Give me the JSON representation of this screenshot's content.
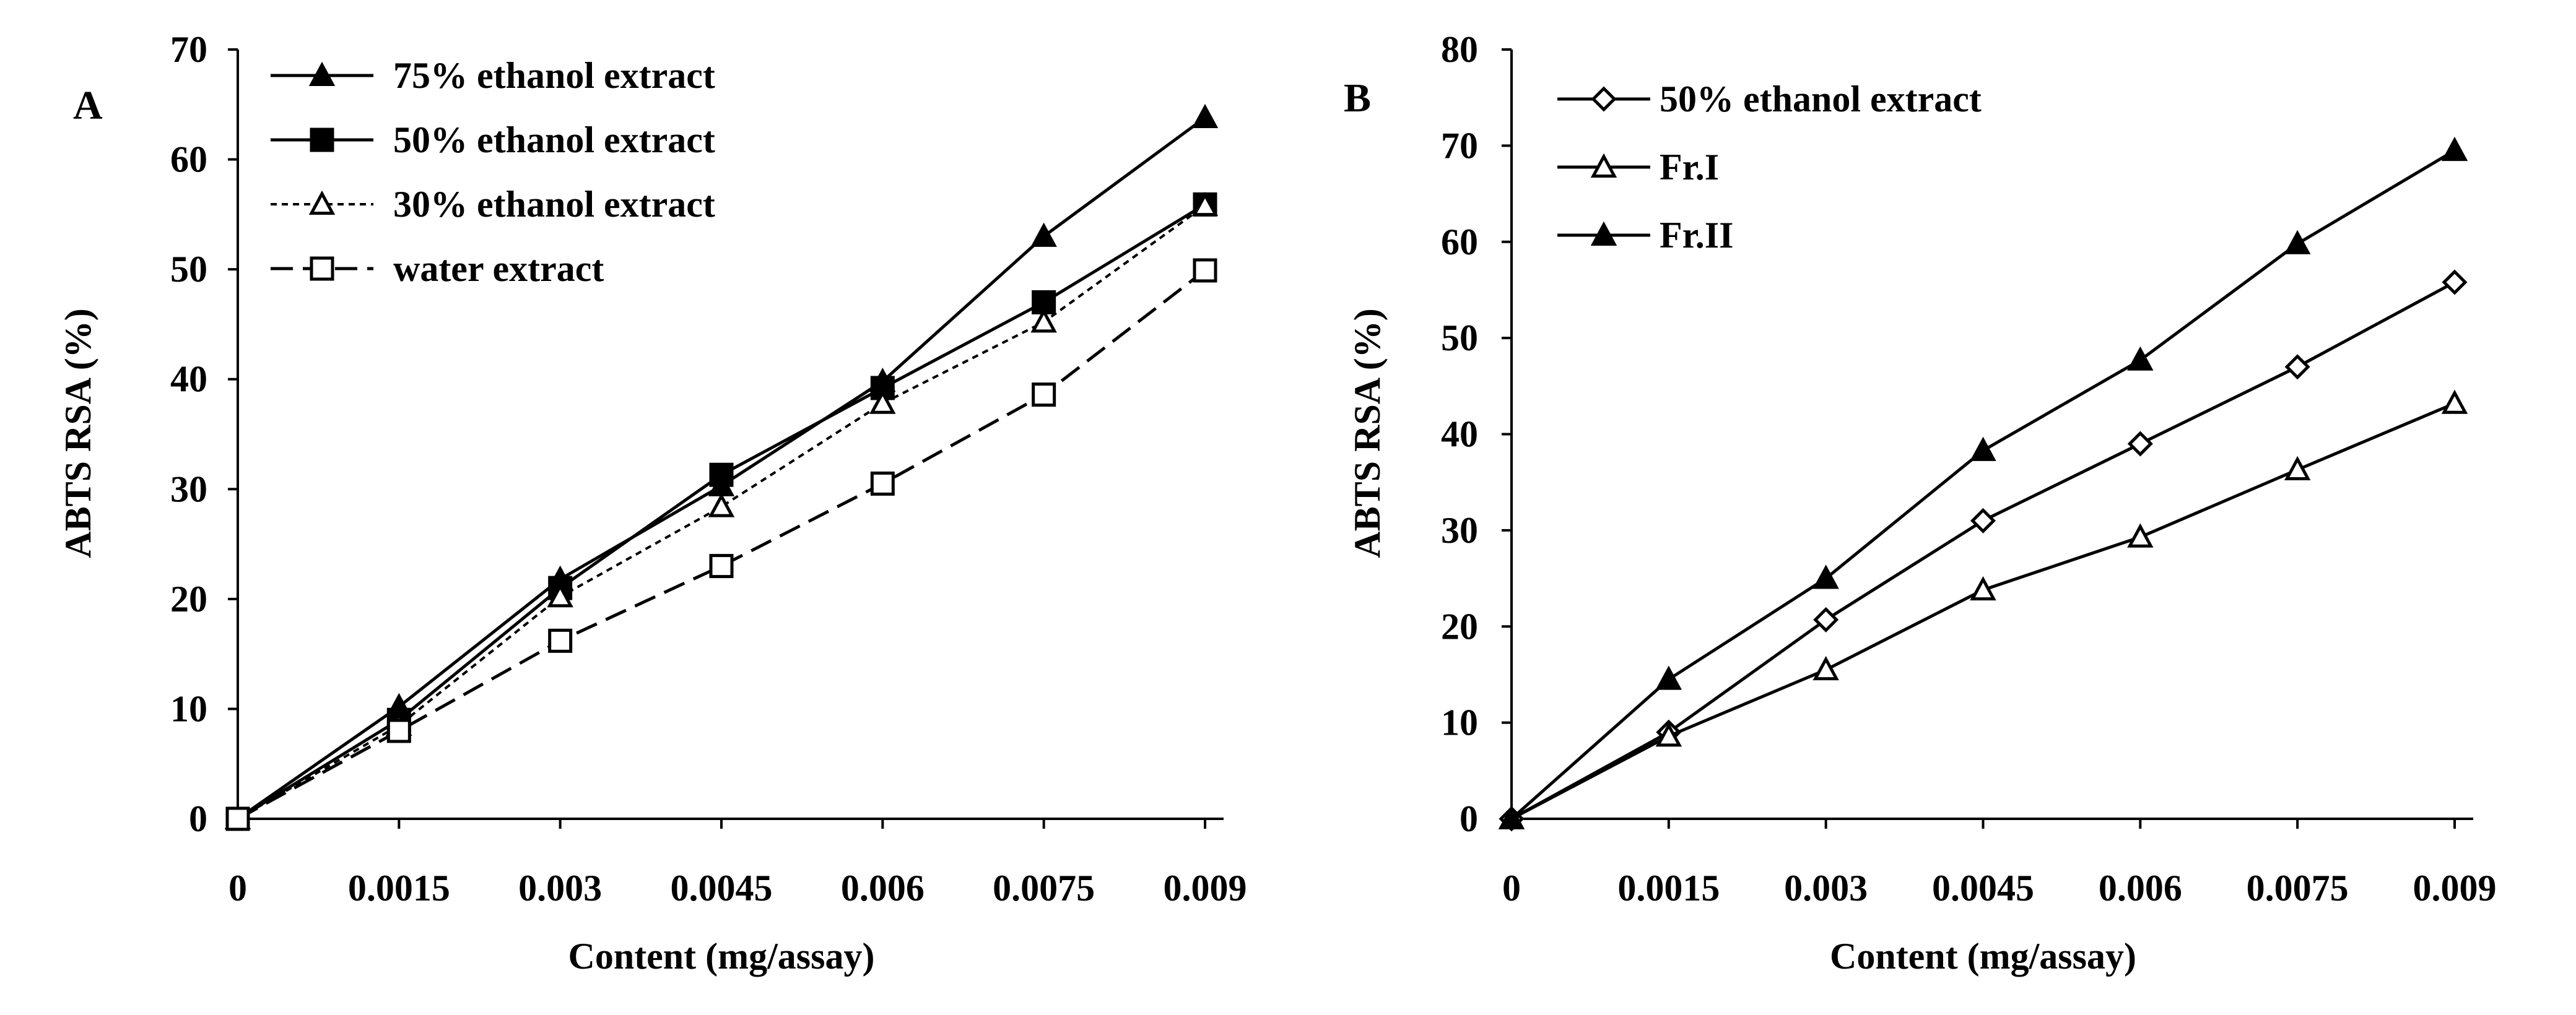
{
  "chart_data": [
    {
      "type": "line",
      "panel_label": "A",
      "xlabel": "Content (mg/assay)",
      "ylabel": "ABTS RSA  (%)",
      "x": [
        0,
        0.0015,
        0.003,
        0.0045,
        0.006,
        0.0075,
        0.009
      ],
      "x_tick_labels": [
        "0",
        "0.0015",
        "0.003",
        "0.0045",
        "0.006",
        "0.0075",
        "0.009"
      ],
      "ylim": [
        0,
        70
      ],
      "y_ticks": [
        0,
        10,
        20,
        30,
        40,
        50,
        60,
        70
      ],
      "y_tick_labels": [
        "0",
        "10",
        "20",
        "30",
        "40",
        "50",
        "60",
        "70"
      ],
      "legend_position": "top-left",
      "series": [
        {
          "name": "75% ethanol extract",
          "values": [
            0,
            10.2,
            21.8,
            30.3,
            39.8,
            53.0,
            63.8
          ],
          "marker": "triangle-filled",
          "line": "solid",
          "color": "#000000"
        },
        {
          "name": "50% ethanol extract",
          "values": [
            0,
            9.0,
            21.0,
            31.3,
            39.2,
            47.0,
            55.9
          ],
          "marker": "square-filled",
          "line": "solid",
          "color": "#000000"
        },
        {
          "name": "30% ethanol extract",
          "values": [
            0,
            8.5,
            20.2,
            28.4,
            37.8,
            45.2,
            55.8
          ],
          "marker": "triangle-open",
          "line": "dotted",
          "color": "#000000"
        },
        {
          "name": "water extract",
          "values": [
            0,
            8.0,
            16.2,
            23.0,
            30.5,
            38.6,
            49.9
          ],
          "marker": "square-open",
          "line": "dashed",
          "color": "#000000"
        }
      ]
    },
    {
      "type": "line",
      "panel_label": "B",
      "xlabel": "Content (mg/assay)",
      "ylabel": "ABTS RSA  (%)",
      "x": [
        0,
        0.0015,
        0.003,
        0.0045,
        0.006,
        0.0075,
        0.009
      ],
      "x_tick_labels": [
        "0",
        "0.0015",
        "0.003",
        "0.0045",
        "0.006",
        "0.0075",
        "0.009"
      ],
      "ylim": [
        0,
        80
      ],
      "y_ticks": [
        0,
        10,
        20,
        30,
        40,
        50,
        60,
        70,
        80
      ],
      "y_tick_labels": [
        "0",
        "10",
        "20",
        "30",
        "40",
        "50",
        "60",
        "70",
        "80"
      ],
      "legend_position": "top-left",
      "series": [
        {
          "name": "50% ethanol extract",
          "values": [
            0,
            9.0,
            20.7,
            31.0,
            39.0,
            47.0,
            55.8
          ],
          "marker": "diamond-open",
          "line": "solid",
          "color": "#000000"
        },
        {
          "name": "Fr.I",
          "values": [
            0,
            8.6,
            15.5,
            23.8,
            29.3,
            36.3,
            43.2
          ],
          "marker": "triangle-open",
          "line": "solid",
          "color": "#000000"
        },
        {
          "name": "Fr.II",
          "values": [
            0,
            14.5,
            25.0,
            38.3,
            47.7,
            59.8,
            69.5
          ],
          "marker": "triangle-filled",
          "line": "solid",
          "color": "#000000"
        }
      ]
    }
  ]
}
